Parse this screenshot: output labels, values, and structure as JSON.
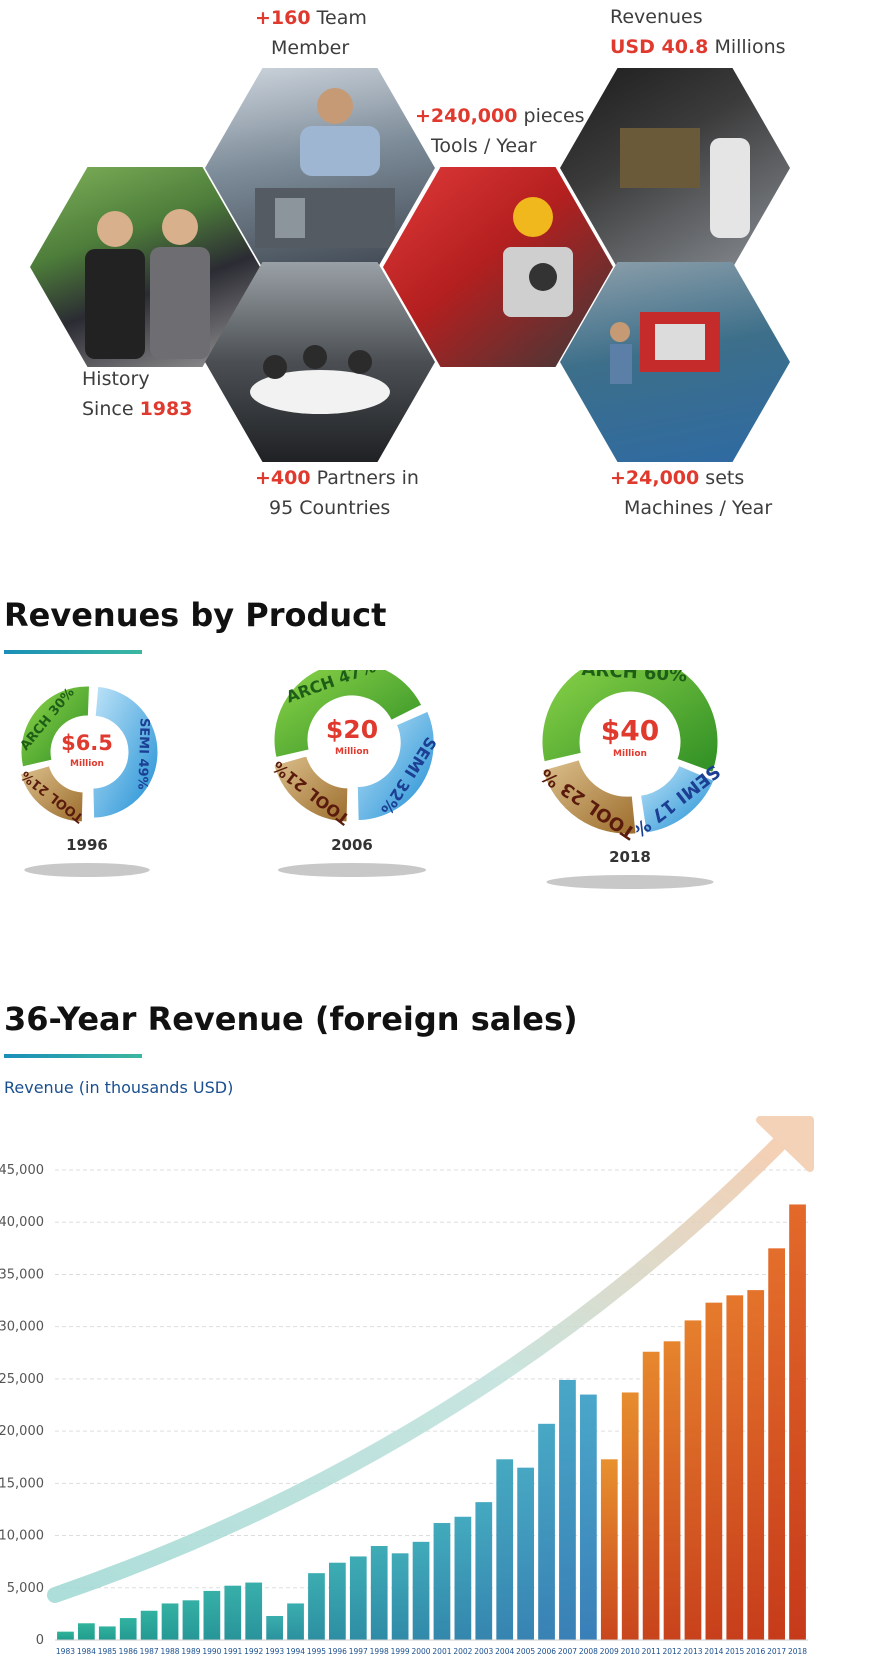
{
  "stats": {
    "team": {
      "value": "+160",
      "text1": "Team",
      "text2": "Member"
    },
    "revenues": {
      "text1": "Revenues",
      "value": "USD 40.8",
      "text2": "Millions"
    },
    "tools": {
      "value": "+240,000",
      "text1": "pieces",
      "text2": "Tools / Year"
    },
    "history": {
      "text1": "History",
      "text2": "Since",
      "value": "1983"
    },
    "partners": {
      "value": "+400",
      "text1": "Partners in",
      "text2": "95 Countries"
    },
    "machines": {
      "value": "+24,000",
      "text1": "sets",
      "text2": "Machines / Year"
    }
  },
  "section1": {
    "title": "Revenues by Product"
  },
  "donuts": [
    {
      "year": "1996",
      "total": "$6.5",
      "unit": "Million",
      "slices": [
        {
          "label": "ARCH",
          "pct": "30%",
          "value": 30,
          "color": "#4cae2a"
        },
        {
          "label": "SEMI",
          "pct": "49%",
          "value": 49,
          "color": "#3aa6e0"
        },
        {
          "label": "TOOL",
          "pct": "21%",
          "value": 21,
          "color": "#b78a45"
        }
      ]
    },
    {
      "year": "2006",
      "total": "$20",
      "unit": "Million",
      "slices": [
        {
          "label": "ARCH",
          "pct": "47%",
          "value": 47,
          "color": "#4cae2a"
        },
        {
          "label": "SEMI",
          "pct": "32%",
          "value": 32,
          "color": "#3aa6e0"
        },
        {
          "label": "TOOL",
          "pct": "21%",
          "value": 21,
          "color": "#b78a45"
        }
      ]
    },
    {
      "year": "2018",
      "total": "$40",
      "unit": "Million",
      "slices": [
        {
          "label": "ARCH",
          "pct": "60%",
          "value": 60,
          "color": "#4cae2a"
        },
        {
          "label": "SEMI",
          "pct": "17 %",
          "value": 17,
          "color": "#3aa6e0"
        },
        {
          "label": "TOOL",
          "pct": "23 %",
          "value": 23,
          "color": "#b78a45"
        }
      ]
    }
  ],
  "section2": {
    "title": "36-Year Revenue (foreign sales)",
    "axis_note": "Revenue (in thousands USD)"
  },
  "chart_data": {
    "type": "bar",
    "title": "36-Year Revenue (foreign sales)",
    "ylabel": "Revenue (in thousands USD)",
    "ylim": [
      0,
      45000
    ],
    "yticks": [
      "0",
      "5,000",
      "10,000",
      "15,000",
      "20,000",
      "25,000",
      "30,000",
      "35,000",
      "40,000",
      "45,000"
    ],
    "grid": true,
    "categories": [
      "1983",
      "1984",
      "1985",
      "1986",
      "1987",
      "1988",
      "1989",
      "1990",
      "1991",
      "1992",
      "1993",
      "1994",
      "1995",
      "1996",
      "1997",
      "1998",
      "1999",
      "2000",
      "2001",
      "2002",
      "2003",
      "2004",
      "2005",
      "2006",
      "2007",
      "2008",
      "2009",
      "2010",
      "2011",
      "2012",
      "2013",
      "2014",
      "2015",
      "2016",
      "2017",
      "2018"
    ],
    "values": [
      800,
      1600,
      1300,
      2100,
      2800,
      3500,
      3800,
      4700,
      5200,
      5500,
      2300,
      3500,
      6400,
      7400,
      8000,
      9000,
      8300,
      9400,
      11200,
      11800,
      13200,
      17300,
      16500,
      20700,
      24900,
      23500,
      17300,
      23700,
      27600,
      28600,
      30600,
      32300,
      33000,
      33500,
      37500,
      41700
    ],
    "colors": {
      "early": "#2fb39a",
      "mid": "#3a8fc7",
      "late": "#e36a2a"
    }
  }
}
